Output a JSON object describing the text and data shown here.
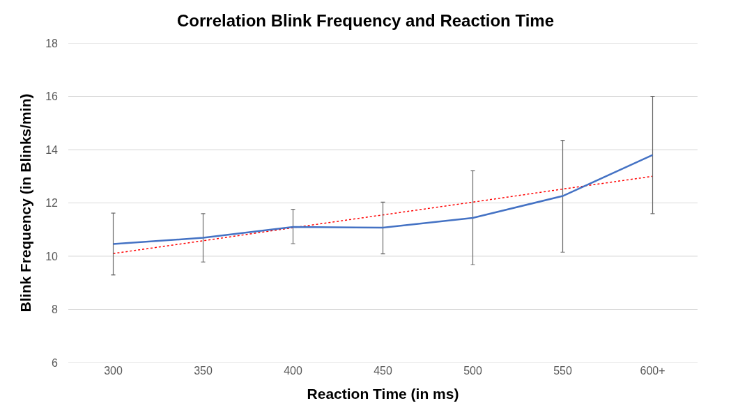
{
  "chart_data": {
    "type": "line",
    "title": "Correlation Blink Frequency and Reaction Time",
    "xlabel": "Reaction Time (in ms)",
    "ylabel": "Blink Frequency (in Blinks/min)",
    "categories": [
      "300",
      "350",
      "400",
      "450",
      "500",
      "550",
      "600+"
    ],
    "series": [
      {
        "color": "#4472c4",
        "line_style": "solid",
        "values": [
          10.46,
          10.69,
          11.1,
          11.07,
          11.44,
          12.26,
          13.8
        ],
        "errors": [
          [
            9.3,
            11.62
          ],
          [
            9.78,
            11.6
          ],
          [
            10.47,
            11.76
          ],
          [
            10.09,
            12.03
          ],
          [
            9.68,
            13.21
          ],
          [
            10.15,
            14.35
          ],
          [
            11.6,
            16.0
          ]
        ]
      },
      {
        "color": "#ff0000",
        "line_style": "dotted",
        "values": [
          10.1,
          10.58,
          11.07,
          11.55,
          12.03,
          12.52,
          13.0
        ]
      }
    ],
    "ylim": [
      6,
      18
    ],
    "yticks": [
      6,
      8,
      10,
      12,
      14,
      16,
      18
    ],
    "grid": "y",
    "marker": "none"
  }
}
